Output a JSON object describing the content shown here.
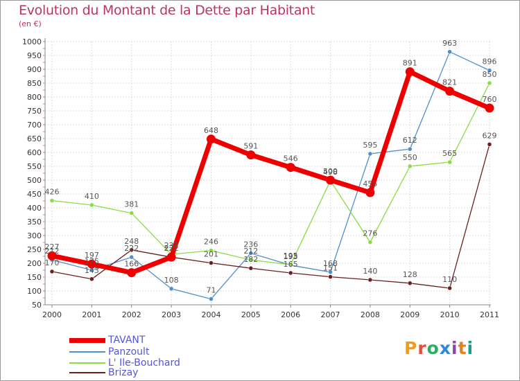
{
  "title": "Evolution du Montant de la Dette par Habitant",
  "unit_label": "(en €)",
  "logo_text": "Proxiti",
  "chart_data": {
    "type": "line",
    "title": "Evolution du Montant de la Dette par Habitant",
    "subtitle": "(en €)",
    "xlabel": "",
    "ylabel": "",
    "x": [
      "2000",
      "2001",
      "2002",
      "2003",
      "2004",
      "2005",
      "2006",
      "2007",
      "2008",
      "2009",
      "2010",
      "2011"
    ],
    "y_ticks": [
      50,
      100,
      150,
      200,
      250,
      300,
      350,
      400,
      450,
      500,
      550,
      600,
      650,
      700,
      750,
      800,
      850,
      900,
      950,
      1000
    ],
    "ylim": [
      50,
      1000
    ],
    "grid": true,
    "legend_position": "bottom-left",
    "series": [
      {
        "name": "TAVANT",
        "color": "#ee0000",
        "values": [
          227,
          197,
          166,
          222,
          648,
          591,
          546,
          500,
          455,
          891,
          821,
          760
        ]
      },
      {
        "name": "Panzoult",
        "color": "#4f8fcc",
        "values": [
          212,
          175,
          222,
          108,
          71,
          236,
          193,
          168,
          595,
          612,
          963,
          896
        ]
      },
      {
        "name": "L' Ile-Bouchard",
        "color": "#88dd44",
        "values": [
          426,
          410,
          381,
          232,
          246,
          212,
          195,
          498,
          276,
          550,
          565,
          850
        ]
      },
      {
        "name": "Brizay",
        "color": "#6b1f1f",
        "values": [
          170,
          143,
          248,
          222,
          201,
          182,
          165,
          151,
          140,
          128,
          110,
          629
        ]
      }
    ]
  }
}
